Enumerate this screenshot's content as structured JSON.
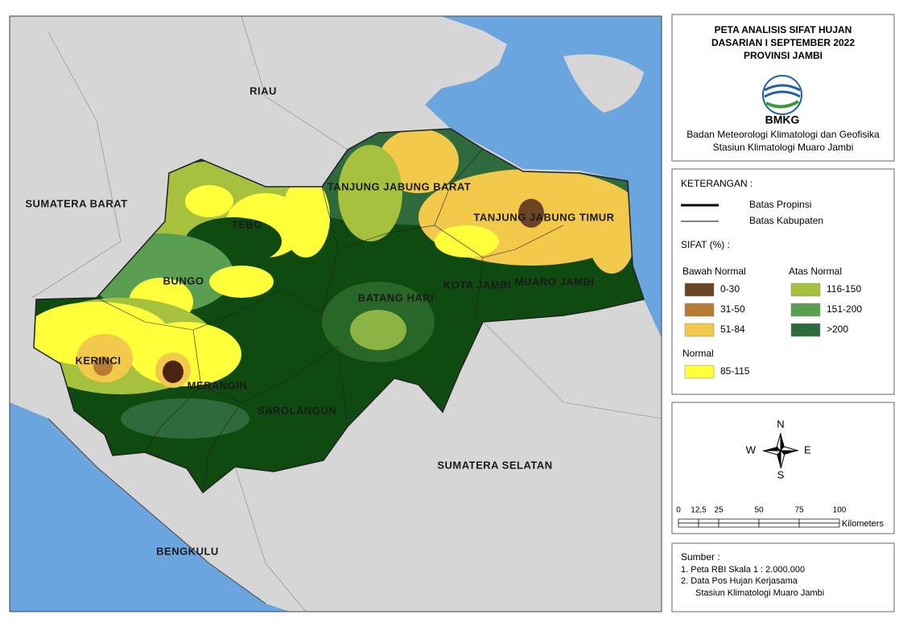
{
  "map": {
    "labels": [
      "RIAU",
      "SUMATERA BARAT",
      "TEBO",
      "TANJUNG JABUNG BARAT",
      "TANJUNG JABUNG TIMUR",
      "BUNGO",
      "KOTA JAMBI",
      "MUARO JAMBI",
      "BATANG HARI",
      "KERINCI",
      "MERANGIN",
      "SAROLANGUN",
      "SUMATERA SELATAN",
      "BENGKULU"
    ]
  },
  "header": {
    "title_lines": [
      "PETA ANALISIS SIFAT HUJAN",
      "DASARIAN I SEPTEMBER 2022",
      "PROVINSI JAMBI"
    ],
    "logo_text": "BMKG",
    "agency_lines": [
      "Badan Meteorologi Klimatologi dan Geofisika",
      "Stasiun Klimatologi Muaro Jambi"
    ]
  },
  "legend": {
    "title": "KETERANGAN :",
    "boundaries": [
      {
        "label": "Batas Propinsi",
        "width": 3
      },
      {
        "label": "Batas Kabupaten",
        "width": 1
      }
    ],
    "sifat_title": "SIFAT (%) :",
    "groups": [
      {
        "name": "Bawah Normal",
        "items": [
          {
            "label": "0-30",
            "color": "#6b4426"
          },
          {
            "label": "31-50",
            "color": "#b87b34"
          },
          {
            "label": "51-84",
            "color": "#f2c94a"
          }
        ]
      },
      {
        "name": "Atas Normal",
        "items": [
          {
            "label": "116-150",
            "color": "#a6c13e"
          },
          {
            "label": "151-200",
            "color": "#5a9e52"
          },
          {
            "label": ">200",
            "color": "#2f6a3c"
          }
        ]
      },
      {
        "name": "Normal",
        "items": [
          {
            "label": "85-115",
            "color": "#ffff3a"
          }
        ]
      }
    ]
  },
  "compass": {
    "north": "N",
    "east": "E",
    "south": "S",
    "west": "W"
  },
  "scale": {
    "ticks": [
      0,
      {
        "value": 12.5,
        "label": "12,5"
      },
      25,
      50,
      75,
      100
    ],
    "unit": "Kilometers"
  },
  "source": {
    "title": "Sumber :",
    "lines": [
      "1. Peta RBI Skala 1 : 2.000.000",
      "2. Data Pos Hujan Kerjasama",
      "Stasiun Klimatologi Muaro Jambi"
    ]
  }
}
